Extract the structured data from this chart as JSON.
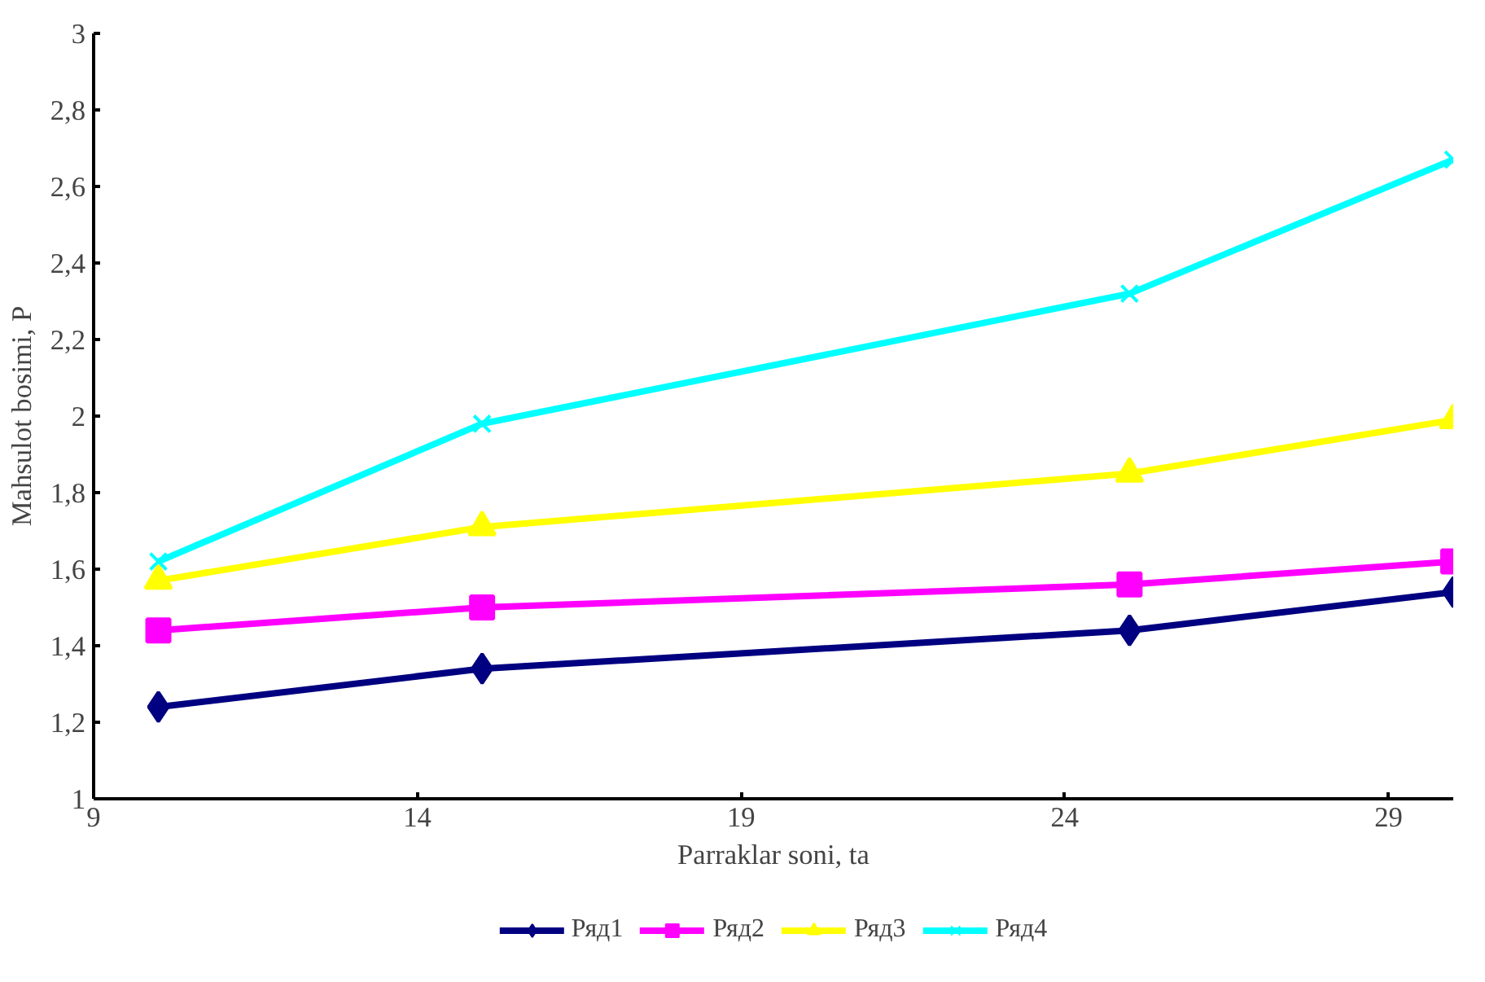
{
  "chart_data": {
    "type": "line",
    "xlabel": "Parraklar soni, ta",
    "ylabel": "Mahsulot bosimi, P",
    "x": [
      10,
      15,
      25,
      30
    ],
    "series": [
      {
        "name": "Ряд1",
        "color": "#000080",
        "marker": "diamond",
        "values": [
          1.24,
          1.34,
          1.44,
          1.54
        ]
      },
      {
        "name": "Ряд2",
        "color": "#ff00ff",
        "marker": "square",
        "values": [
          1.44,
          1.5,
          1.56,
          1.62
        ]
      },
      {
        "name": "Ряд3",
        "color": "#ffff00",
        "marker": "triangle",
        "values": [
          1.57,
          1.71,
          1.85,
          1.99
        ]
      },
      {
        "name": "Ряд4",
        "color": "#00ffff",
        "marker": "cross",
        "values": [
          1.62,
          1.98,
          2.32,
          2.67
        ]
      }
    ],
    "xlim": [
      9,
      30
    ],
    "xticks": [
      9,
      14,
      19,
      24,
      29
    ],
    "ylim": [
      1,
      3
    ],
    "yticks": [
      {
        "value": 1,
        "label": "1"
      },
      {
        "value": 1.2,
        "label": "1,2"
      },
      {
        "value": 1.4,
        "label": "1,4"
      },
      {
        "value": 1.6,
        "label": "1,6"
      },
      {
        "value": 1.8,
        "label": "1,8"
      },
      {
        "value": 2,
        "label": "2"
      },
      {
        "value": 2.2,
        "label": "2,2"
      },
      {
        "value": 2.4,
        "label": "2,4"
      },
      {
        "value": 2.6,
        "label": "2,6"
      },
      {
        "value": 2.8,
        "label": "2,8"
      },
      {
        "value": 3,
        "label": "3"
      }
    ],
    "grid": false,
    "legend": "bottom",
    "line_style": "solid"
  }
}
